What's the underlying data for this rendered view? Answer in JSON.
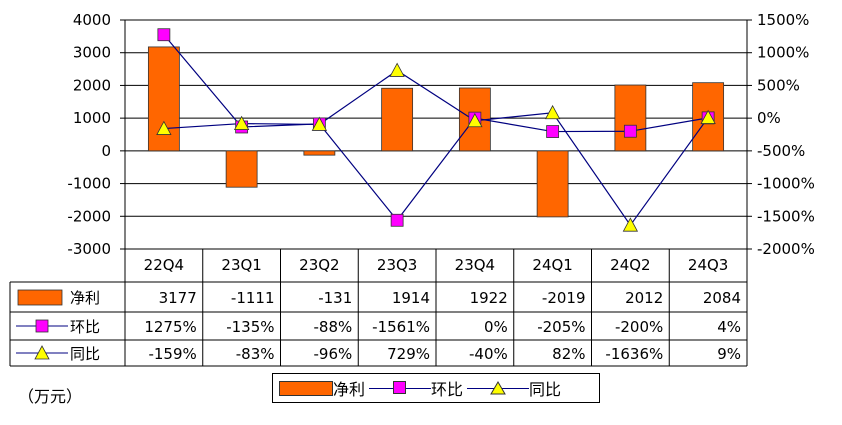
{
  "chart_data": {
    "type": "bar",
    "categories": [
      "22Q4",
      "23Q1",
      "23Q2",
      "23Q3",
      "23Q4",
      "24Q1",
      "24Q2",
      "24Q3"
    ],
    "series": [
      {
        "name": "净利",
        "kind": "bar",
        "axis": "left",
        "color": "#ff6600",
        "values": [
          3177,
          -1111,
          -131,
          1914,
          1922,
          -2019,
          2012,
          2084
        ],
        "labels": [
          "3177",
          "-1111",
          "-131",
          "1914",
          "1922",
          "-2019",
          "2012",
          "2084"
        ]
      },
      {
        "name": "环比",
        "kind": "line",
        "axis": "right",
        "marker": "square",
        "color": "#ff00ff",
        "values": [
          1275,
          -135,
          -88,
          -1561,
          0,
          -205,
          -200,
          4
        ],
        "labels": [
          "1275%",
          "-135%",
          "-88%",
          "-1561%",
          "0%",
          "-205%",
          "-200%",
          "4%"
        ]
      },
      {
        "name": "同比",
        "kind": "line",
        "axis": "right",
        "marker": "triangle",
        "color": "#ffff00",
        "values": [
          -159,
          -83,
          -96,
          729,
          -40,
          82,
          -1636,
          9
        ],
        "labels": [
          "-159%",
          "-83%",
          "-96%",
          "729%",
          "-40%",
          "82%",
          "-1636%",
          "9%"
        ]
      }
    ],
    "ylim_left": [
      -3000,
      4000
    ],
    "yticks_left": [
      "4000",
      "3000",
      "2000",
      "1000",
      "0",
      "-1000",
      "-2000",
      "-3000"
    ],
    "ylim_right": [
      -2000,
      1500
    ],
    "yticks_right": [
      "1500%",
      "1000%",
      "500%",
      "0%",
      "-500%",
      "-1000%",
      "-1500%",
      "-2000%"
    ],
    "unit_label": "（万元）",
    "grid": true,
    "legend_position": "bottom-center",
    "data_table": true,
    "line_color": "#000080"
  }
}
